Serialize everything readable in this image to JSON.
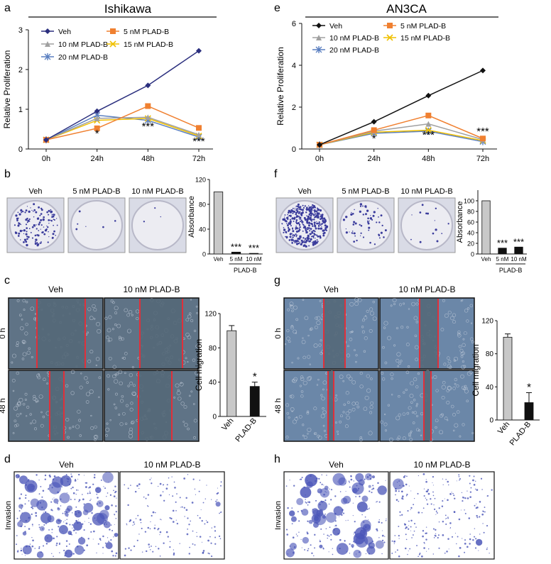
{
  "panels": {
    "a": "a",
    "b": "b",
    "c": "c",
    "d": "d",
    "e": "e",
    "f": "f",
    "g": "g",
    "h": "h"
  },
  "chart_data": [
    {
      "panel": "a",
      "type": "line",
      "title": "Ishikawa",
      "ylabel": "Relative Proliferation",
      "categories": [
        "0h",
        "24h",
        "48h",
        "72h"
      ],
      "ylim": [
        0,
        3
      ],
      "yticks": [
        "0",
        "1",
        "2",
        "3"
      ],
      "series": [
        {
          "name": "Veh",
          "values": [
            0.23,
            0.95,
            1.6,
            2.47
          ],
          "color": "#2b2f7e",
          "marker": "diamond"
        },
        {
          "name": "5 nM PLAD-B",
          "values": [
            0.23,
            0.52,
            1.08,
            0.53
          ],
          "color": "#f08030",
          "marker": "square"
        },
        {
          "name": "10 nM PLAD-B",
          "values": [
            0.23,
            0.77,
            0.8,
            0.36
          ],
          "color": "#a0a0a0",
          "marker": "triangle"
        },
        {
          "name": "15 nM PLAD-B",
          "values": [
            0.23,
            0.72,
            0.77,
            0.33
          ],
          "color": "#f0c000",
          "marker": "x"
        },
        {
          "name": "20 nM PLAD-B",
          "values": [
            0.23,
            0.85,
            0.72,
            0.3
          ],
          "color": "#5a7fc0",
          "marker": "star"
        }
      ],
      "annotations": [
        "*",
        "***",
        "***"
      ]
    },
    {
      "panel": "e",
      "type": "line",
      "title": "AN3CA",
      "ylabel": "Relative Proliferation",
      "categories": [
        "0h",
        "24h",
        "48h",
        "72h"
      ],
      "ylim": [
        0,
        6
      ],
      "yticks": [
        "0",
        "2",
        "4",
        "6"
      ],
      "series": [
        {
          "name": "Veh",
          "values": [
            0.2,
            1.3,
            2.55,
            3.75
          ],
          "color": "#111111",
          "marker": "diamond"
        },
        {
          "name": "5 nM PLAD-B",
          "values": [
            0.2,
            0.9,
            1.6,
            0.5
          ],
          "color": "#f08030",
          "marker": "square"
        },
        {
          "name": "10 nM PLAD-B",
          "values": [
            0.2,
            0.85,
            1.2,
            0.45
          ],
          "color": "#a0a0a0",
          "marker": "triangle"
        },
        {
          "name": "15 nM PLAD-B",
          "values": [
            0.2,
            0.8,
            0.9,
            0.4
          ],
          "color": "#f0c000",
          "marker": "x"
        },
        {
          "name": "20 nM PLAD-B",
          "values": [
            0.2,
            0.75,
            0.85,
            0.35
          ],
          "color": "#5a7fc0",
          "marker": "star"
        }
      ],
      "annotations": [
        "*",
        "***",
        "***"
      ]
    },
    {
      "panel": "b",
      "type": "bar",
      "ylabel": "Absorbance",
      "categories": [
        "Veh",
        "5 nM",
        "10 nM"
      ],
      "group_label": "PLAD-B",
      "values": [
        100,
        3,
        1
      ],
      "ylim": [
        0,
        120
      ],
      "yticks": [
        "0",
        "40",
        "80",
        "120"
      ],
      "annotations": [
        "",
        "***",
        "***"
      ]
    },
    {
      "panel": "f",
      "type": "bar",
      "ylabel": "Absorbance",
      "categories": [
        "Veh",
        "5 nM",
        "10 nM"
      ],
      "group_label": "PLAD-B",
      "values": [
        100,
        11,
        13
      ],
      "ylim": [
        0,
        120
      ],
      "yticks": [
        "0",
        "20",
        "40",
        "60",
        "80",
        "100"
      ],
      "annotations": [
        "",
        "***",
        "***"
      ]
    },
    {
      "panel": "c",
      "type": "bar",
      "ylabel": "Cell migration",
      "categories": [
        "Veh",
        "PLAD-B"
      ],
      "values": [
        100,
        35
      ],
      "errors": [
        6,
        5
      ],
      "ylim": [
        0,
        120
      ],
      "yticks": [
        "0",
        "40",
        "80",
        "120"
      ],
      "annotations": [
        "",
        "*"
      ]
    },
    {
      "panel": "g",
      "type": "bar",
      "ylabel": "Cell migration",
      "categories": [
        "Veh",
        "PLAD-B"
      ],
      "values": [
        100,
        21
      ],
      "errors": [
        4,
        12
      ],
      "ylim": [
        0,
        120
      ],
      "yticks": [
        "0",
        "40",
        "80",
        "120"
      ],
      "annotations": [
        "",
        "*"
      ]
    }
  ],
  "image_labels": {
    "veh": "Veh",
    "plad5": "5 nM PLAD-B",
    "plad10": "10 nM PLAD-B",
    "h0": "0 h",
    "h48": "48 h",
    "invasion": "Invasion"
  },
  "colors": {
    "plate_bg": "#d9dbe6",
    "colony": "#3b3c9c",
    "wound_bg": "#5f7386",
    "wound_edge": "#e0303a",
    "invasion_stain": "#4a55b8"
  }
}
